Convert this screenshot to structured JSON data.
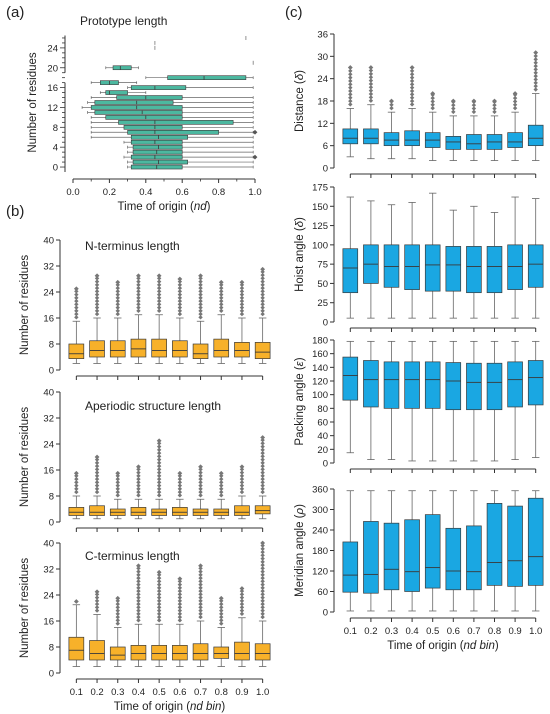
{
  "panel_labels": [
    "(a)",
    "(b)",
    "(c)"
  ],
  "colors": {
    "teal": "#4cb8a0",
    "orange": "#f7b12a",
    "blue": "#1aa7e2",
    "edge": "#3a3a3a"
  },
  "chart_data": [
    {
      "id": "a",
      "type": "box",
      "orientation": "horizontal",
      "title": "Prototype length",
      "xlabel": "Time of origin (nd)",
      "ylabel": "Number of residues",
      "xlim": [
        0,
        1
      ],
      "x_ticks": [
        "0.0",
        "0.2",
        "0.4",
        "0.6",
        "0.8",
        "1.0"
      ],
      "ylim": [
        -1,
        27
      ],
      "y_ticks": [
        "0",
        "4",
        "8",
        "12",
        "16",
        "20",
        "24"
      ],
      "boxes": [
        {
          "y": 0,
          "min": 0.3,
          "q1": 0.32,
          "med": 0.46,
          "q3": 0.6,
          "max": 0.99
        },
        {
          "y": 1,
          "min": 0.3,
          "q1": 0.33,
          "med": 0.47,
          "q3": 0.63,
          "max": 0.99
        },
        {
          "y": 2,
          "min": 0.28,
          "q1": 0.32,
          "med": 0.45,
          "q3": 0.6,
          "max": 0.99
        },
        {
          "y": 3,
          "min": 0.3,
          "q1": 0.33,
          "med": 0.46,
          "q3": 0.6,
          "max": 0.99
        },
        {
          "y": 4,
          "min": 0.3,
          "q1": 0.33,
          "med": 0.47,
          "q3": 0.6,
          "max": 0.99
        },
        {
          "y": 5,
          "min": 0.28,
          "q1": 0.32,
          "med": 0.45,
          "q3": 0.6,
          "max": 0.99
        },
        {
          "y": 6,
          "min": 0.1,
          "q1": 0.32,
          "med": 0.47,
          "q3": 0.63,
          "max": 0.99
        },
        {
          "y": 7,
          "min": 0.1,
          "q1": 0.3,
          "med": 0.45,
          "q3": 0.8,
          "max": 0.99
        },
        {
          "y": 8,
          "min": 0.1,
          "q1": 0.28,
          "med": 0.45,
          "q3": 0.6,
          "max": 0.99
        },
        {
          "y": 9,
          "min": 0.1,
          "q1": 0.25,
          "med": 0.45,
          "q3": 0.88,
          "max": 0.99
        },
        {
          "y": 10,
          "min": 0.1,
          "q1": 0.18,
          "med": 0.4,
          "q3": 0.6,
          "max": 0.99
        },
        {
          "y": 11,
          "min": 0.08,
          "q1": 0.12,
          "med": 0.38,
          "q3": 0.6,
          "max": 0.99
        },
        {
          "y": 12,
          "min": 0.05,
          "q1": 0.1,
          "med": 0.35,
          "q3": 0.6,
          "max": 0.99
        },
        {
          "y": 13,
          "min": 0.08,
          "q1": 0.12,
          "med": 0.35,
          "q3": 0.55,
          "max": 0.99
        },
        {
          "y": 14,
          "min": 0.1,
          "q1": 0.24,
          "med": 0.4,
          "q3": 0.6,
          "max": 0.99
        },
        {
          "y": 15,
          "min": 0.15,
          "q1": 0.18,
          "med": 0.2,
          "q3": 0.3,
          "max": 0.4
        },
        {
          "y": 16,
          "min": 0.3,
          "q1": 0.32,
          "med": 0.45,
          "q3": 0.62,
          "max": 0.99
        },
        {
          "y": 17,
          "min": 0.1,
          "q1": 0.15,
          "med": 0.2,
          "q3": 0.25,
          "max": 0.35
        },
        {
          "y": 18,
          "min": 0.4,
          "q1": 0.52,
          "med": 0.72,
          "q3": 0.95,
          "max": 0.99
        },
        {
          "y": 20,
          "min": 0.18,
          "q1": 0.22,
          "med": 0.26,
          "q3": 0.32,
          "max": 0.36
        },
        {
          "y": 21,
          "min": 0.99,
          "q1": 0.99,
          "med": 0.99,
          "q3": 0.99,
          "max": 0.99
        },
        {
          "y": 24,
          "min": 0.45,
          "q1": 0.45,
          "med": 0.45,
          "q3": 0.45,
          "max": 0.45
        },
        {
          "y": 25,
          "min": 0.45,
          "q1": 0.45,
          "med": 0.45,
          "q3": 0.45,
          "max": 0.45
        },
        {
          "y": 26,
          "min": 0.95,
          "q1": 0.95,
          "med": 0.95,
          "q3": 0.95,
          "max": 0.95
        }
      ],
      "outliers": [
        [
          1.0,
          7
        ],
        [
          1.0,
          2
        ]
      ]
    },
    {
      "id": "b1",
      "type": "box",
      "title": "N-terminus length",
      "xlabel": "",
      "ylabel": "Number of residues",
      "categories": [
        "0.1",
        "0.2",
        "0.3",
        "0.4",
        "0.5",
        "0.6",
        "0.7",
        "0.8",
        "0.9",
        "1.0"
      ],
      "ylim": [
        0,
        40
      ],
      "y_ticks": [
        "0",
        "8",
        "16",
        "24",
        "32",
        "40"
      ],
      "boxes": [
        {
          "min": 2,
          "q1": 3.5,
          "med": 5,
          "q3": 8,
          "max": 15
        },
        {
          "min": 2,
          "q1": 4,
          "med": 6,
          "q3": 9,
          "max": 16
        },
        {
          "min": 2,
          "q1": 4,
          "med": 6,
          "q3": 9,
          "max": 16
        },
        {
          "min": 2,
          "q1": 4,
          "med": 6.5,
          "q3": 9.5,
          "max": 17
        },
        {
          "min": 2,
          "q1": 4,
          "med": 6,
          "q3": 9.5,
          "max": 17
        },
        {
          "min": 2,
          "q1": 4,
          "med": 6,
          "q3": 9,
          "max": 16
        },
        {
          "min": 2,
          "q1": 3.5,
          "med": 5,
          "q3": 8,
          "max": 15
        },
        {
          "min": 2,
          "q1": 4,
          "med": 6,
          "q3": 9.5,
          "max": 17
        },
        {
          "min": 2,
          "q1": 4,
          "med": 6,
          "q3": 8.5,
          "max": 16
        },
        {
          "min": 2,
          "q1": 3.5,
          "med": 5.5,
          "q3": 8.5,
          "max": 16
        }
      ],
      "outlier_top": [
        25,
        29,
        27,
        29,
        29,
        28,
        29,
        27,
        27,
        31
      ]
    },
    {
      "id": "b2",
      "type": "box",
      "title": "Aperiodic structure length",
      "xlabel": "",
      "ylabel": "Number of residues",
      "categories": [
        "0.1",
        "0.2",
        "0.3",
        "0.4",
        "0.5",
        "0.6",
        "0.7",
        "0.8",
        "0.9",
        "1.0"
      ],
      "ylim": [
        0,
        40
      ],
      "y_ticks": [
        "0",
        "8",
        "16",
        "24",
        "32",
        "40"
      ],
      "boxes": [
        {
          "min": 1,
          "q1": 2,
          "med": 3,
          "q3": 4.5,
          "max": 8
        },
        {
          "min": 1,
          "q1": 2,
          "med": 3,
          "q3": 5,
          "max": 8
        },
        {
          "min": 1,
          "q1": 2,
          "med": 3,
          "q3": 4,
          "max": 7
        },
        {
          "min": 1,
          "q1": 2,
          "med": 3,
          "q3": 4.5,
          "max": 7
        },
        {
          "min": 1,
          "q1": 2,
          "med": 3,
          "q3": 4,
          "max": 7
        },
        {
          "min": 1,
          "q1": 2,
          "med": 3,
          "q3": 4.5,
          "max": 7
        },
        {
          "min": 1,
          "q1": 2,
          "med": 3,
          "q3": 4,
          "max": 7
        },
        {
          "min": 1,
          "q1": 2,
          "med": 3,
          "q3": 4,
          "max": 7
        },
        {
          "min": 1,
          "q1": 2,
          "med": 3,
          "q3": 5,
          "max": 8
        },
        {
          "min": 1,
          "q1": 2.5,
          "med": 3.5,
          "q3": 5,
          "max": 8
        }
      ],
      "outlier_top": [
        15,
        20,
        15,
        17,
        25,
        15,
        17,
        15,
        17,
        26
      ]
    },
    {
      "id": "b3",
      "type": "box",
      "title": "C-terminus length",
      "xlabel": "Time of origin (nd bin)",
      "ylabel": "Number of residues",
      "categories": [
        "0.1",
        "0.2",
        "0.3",
        "0.4",
        "0.5",
        "0.6",
        "0.7",
        "0.8",
        "0.9",
        "1.0"
      ],
      "ylim": [
        0,
        40
      ],
      "y_ticks": [
        "0",
        "8",
        "16",
        "24",
        "32",
        "40"
      ],
      "boxes": [
        {
          "min": 2,
          "q1": 4,
          "med": 7,
          "q3": 11,
          "max": 21
        },
        {
          "min": 2,
          "q1": 4,
          "med": 6,
          "q3": 10,
          "max": 18
        },
        {
          "min": 2,
          "q1": 4,
          "med": 5.5,
          "q3": 8,
          "max": 14
        },
        {
          "min": 2,
          "q1": 4,
          "med": 6,
          "q3": 8.5,
          "max": 15
        },
        {
          "min": 2,
          "q1": 4,
          "med": 6,
          "q3": 8.5,
          "max": 15
        },
        {
          "min": 2,
          "q1": 4,
          "med": 6,
          "q3": 8.5,
          "max": 15
        },
        {
          "min": 2,
          "q1": 4,
          "med": 6,
          "q3": 9,
          "max": 16
        },
        {
          "min": 2,
          "q1": 4.5,
          "med": 6,
          "q3": 8,
          "max": 14
        },
        {
          "min": 2,
          "q1": 4,
          "med": 6,
          "q3": 9.5,
          "max": 17
        },
        {
          "min": 2,
          "q1": 4,
          "med": 6,
          "q3": 9,
          "max": 16
        }
      ],
      "outlier_top": [
        22,
        25,
        23,
        33,
        31,
        29,
        33,
        23,
        26,
        40
      ]
    },
    {
      "id": "c1",
      "type": "box",
      "title": "",
      "xlabel": "",
      "ylabel": "Distance (δ)",
      "categories": [
        "0.1",
        "0.2",
        "0.3",
        "0.4",
        "0.5",
        "0.6",
        "0.7",
        "0.8",
        "0.9",
        "1.0"
      ],
      "ylim": [
        0,
        36
      ],
      "y_ticks": [
        "0",
        "6",
        "12",
        "18",
        "24",
        "30",
        "36"
      ],
      "boxes": [
        {
          "min": 3,
          "q1": 6.5,
          "med": 8,
          "q3": 10.5,
          "max": 16
        },
        {
          "min": 2.5,
          "q1": 6.5,
          "med": 8,
          "q3": 10.5,
          "max": 17
        },
        {
          "min": 2.5,
          "q1": 6,
          "med": 7.5,
          "q3": 9.5,
          "max": 15
        },
        {
          "min": 2.5,
          "q1": 6,
          "med": 7.5,
          "q3": 10,
          "max": 16
        },
        {
          "min": 2,
          "q1": 5.5,
          "med": 7.5,
          "q3": 9.5,
          "max": 15
        },
        {
          "min": 2,
          "q1": 5,
          "med": 7,
          "q3": 8.5,
          "max": 14
        },
        {
          "min": 2,
          "q1": 5,
          "med": 6.5,
          "q3": 9,
          "max": 14
        },
        {
          "min": 2,
          "q1": 5,
          "med": 7,
          "q3": 9,
          "max": 14
        },
        {
          "min": 2,
          "q1": 5.5,
          "med": 7,
          "q3": 9.5,
          "max": 15
        },
        {
          "min": 2,
          "q1": 6,
          "med": 8,
          "q3": 11.5,
          "max": 20
        }
      ],
      "outlier_top": [
        27,
        27,
        18,
        27,
        20,
        18,
        18,
        18,
        20,
        31
      ]
    },
    {
      "id": "c2",
      "type": "box",
      "title": "",
      "xlabel": "",
      "ylabel": "Hoist angle (δ)",
      "categories": [
        "0.1",
        "0.2",
        "0.3",
        "0.4",
        "0.5",
        "0.6",
        "0.7",
        "0.8",
        "0.9",
        "1.0"
      ],
      "ylim": [
        0,
        175
      ],
      "y_ticks": [
        "0",
        "25",
        "50",
        "75",
        "100",
        "125",
        "150",
        "175"
      ],
      "boxes": [
        {
          "min": 5,
          "q1": 38,
          "med": 70,
          "q3": 95,
          "max": 162
        },
        {
          "min": 5,
          "q1": 50,
          "med": 75,
          "q3": 100,
          "max": 157
        },
        {
          "min": 5,
          "q1": 45,
          "med": 72,
          "q3": 100,
          "max": 152
        },
        {
          "min": 5,
          "q1": 42,
          "med": 72,
          "q3": 100,
          "max": 155
        },
        {
          "min": 5,
          "q1": 40,
          "med": 74,
          "q3": 100,
          "max": 167
        },
        {
          "min": 5,
          "q1": 40,
          "med": 74,
          "q3": 98,
          "max": 145
        },
        {
          "min": 5,
          "q1": 38,
          "med": 72,
          "q3": 98,
          "max": 150
        },
        {
          "min": 5,
          "q1": 38,
          "med": 72,
          "q3": 98,
          "max": 142
        },
        {
          "min": 5,
          "q1": 42,
          "med": 72,
          "q3": 100,
          "max": 162
        },
        {
          "min": 5,
          "q1": 45,
          "med": 75,
          "q3": 100,
          "max": 160
        }
      ],
      "outlier_top": []
    },
    {
      "id": "c3",
      "type": "box",
      "title": "",
      "xlabel": "",
      "ylabel": "Packing angle (ε)",
      "categories": [
        "0.1",
        "0.2",
        "0.3",
        "0.4",
        "0.5",
        "0.6",
        "0.7",
        "0.8",
        "0.9",
        "1.0"
      ],
      "ylim": [
        0,
        180
      ],
      "y_ticks": [
        "0",
        "20",
        "40",
        "60",
        "80",
        "100",
        "120",
        "140",
        "160",
        "180"
      ],
      "boxes": [
        {
          "min": 15,
          "q1": 92,
          "med": 128,
          "q3": 155,
          "max": 178
        },
        {
          "min": 5,
          "q1": 82,
          "med": 122,
          "q3": 150,
          "max": 178
        },
        {
          "min": 5,
          "q1": 80,
          "med": 122,
          "q3": 148,
          "max": 178
        },
        {
          "min": 3,
          "q1": 80,
          "med": 122,
          "q3": 148,
          "max": 178
        },
        {
          "min": 3,
          "q1": 80,
          "med": 122,
          "q3": 148,
          "max": 178
        },
        {
          "min": 3,
          "q1": 78,
          "med": 120,
          "q3": 147,
          "max": 178
        },
        {
          "min": 3,
          "q1": 78,
          "med": 118,
          "q3": 146,
          "max": 178
        },
        {
          "min": 3,
          "q1": 78,
          "med": 118,
          "q3": 146,
          "max": 178
        },
        {
          "min": 5,
          "q1": 82,
          "med": 122,
          "q3": 148,
          "max": 178
        },
        {
          "min": 8,
          "q1": 85,
          "med": 125,
          "q3": 150,
          "max": 178
        }
      ],
      "outlier_top": []
    },
    {
      "id": "c4",
      "type": "box",
      "title": "",
      "xlabel": "Time of origin (nd bin)",
      "ylabel": "Meridian angle (ρ)",
      "categories": [
        "0.1",
        "0.2",
        "0.3",
        "0.4",
        "0.5",
        "0.6",
        "0.7",
        "0.8",
        "0.9",
        "1.0"
      ],
      "ylim": [
        0,
        360
      ],
      "y_ticks": [
        "0",
        "60",
        "120",
        "180",
        "240",
        "300",
        "360"
      ],
      "boxes": [
        {
          "min": 3,
          "q1": 58,
          "med": 108,
          "q3": 205,
          "max": 355
        },
        {
          "min": 3,
          "q1": 55,
          "med": 110,
          "q3": 265,
          "max": 355
        },
        {
          "min": 3,
          "q1": 65,
          "med": 125,
          "q3": 260,
          "max": 355
        },
        {
          "min": 3,
          "q1": 60,
          "med": 118,
          "q3": 270,
          "max": 355
        },
        {
          "min": 3,
          "q1": 70,
          "med": 130,
          "q3": 285,
          "max": 355
        },
        {
          "min": 3,
          "q1": 65,
          "med": 120,
          "q3": 245,
          "max": 355
        },
        {
          "min": 3,
          "q1": 65,
          "med": 118,
          "q3": 252,
          "max": 355
        },
        {
          "min": 3,
          "q1": 78,
          "med": 145,
          "q3": 318,
          "max": 355
        },
        {
          "min": 3,
          "q1": 75,
          "med": 150,
          "q3": 310,
          "max": 355
        },
        {
          "min": 3,
          "q1": 78,
          "med": 162,
          "q3": 333,
          "max": 355
        }
      ],
      "outlier_top": []
    }
  ]
}
